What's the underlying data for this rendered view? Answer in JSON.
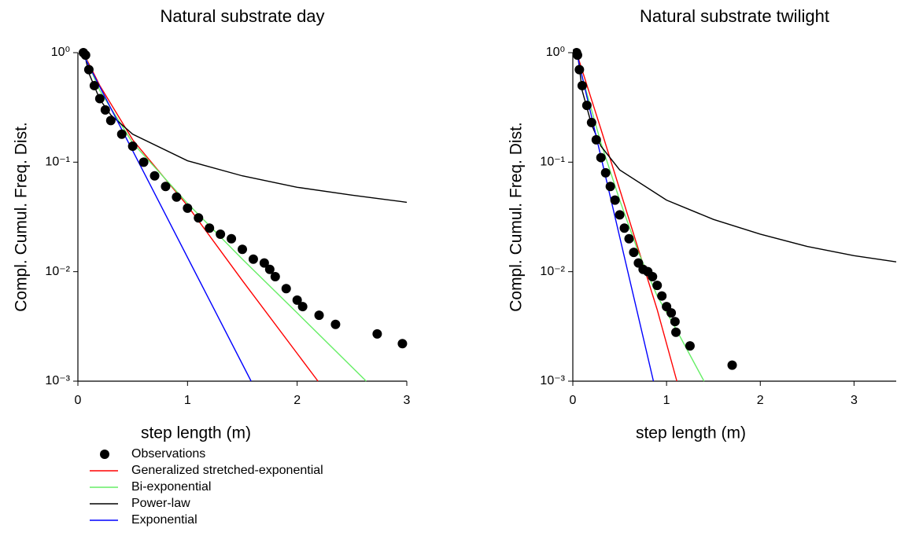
{
  "chart_data": [
    {
      "type": "line",
      "title": "Natural substrate day",
      "xlabel": "step length (m)",
      "ylabel": "Compl. Cumul. Freq. Dist.",
      "xlim": [
        0,
        3
      ],
      "xticks": [
        0,
        1,
        2,
        3
      ],
      "ylim": [
        0.001,
        1
      ],
      "ylog": true,
      "yticks": [
        {
          "value": 1,
          "label": "10⁰"
        },
        {
          "value": 0.1,
          "label": "10⁻¹"
        },
        {
          "value": 0.01,
          "label": "10⁻²"
        },
        {
          "value": 0.001,
          "label": "10⁻³"
        }
      ],
      "legend": "below",
      "series": [
        {
          "name": "Observations",
          "color": "#000000",
          "marker": "circle",
          "x": [
            0.05,
            0.07,
            0.1,
            0.15,
            0.2,
            0.25,
            0.3,
            0.4,
            0.5,
            0.6,
            0.7,
            0.8,
            0.9,
            1.0,
            1.1,
            1.2,
            1.3,
            1.4,
            1.5,
            1.6,
            1.7,
            1.75,
            1.8,
            1.9,
            2.0,
            2.05,
            2.2,
            2.35,
            2.73,
            2.96
          ],
          "values": [
            1,
            0.95,
            0.7,
            0.5,
            0.38,
            0.3,
            0.24,
            0.18,
            0.14,
            0.1,
            0.075,
            0.06,
            0.048,
            0.038,
            0.031,
            0.025,
            0.022,
            0.02,
            0.016,
            0.013,
            0.012,
            0.0105,
            0.009,
            0.007,
            0.0055,
            0.0048,
            0.004,
            0.0033,
            0.0027,
            0.0022
          ]
        },
        {
          "name": "Generalized stretched-exponential",
          "color": "#ff0000",
          "x": [
            0.05,
            0.2,
            0.5,
            1,
            1.5,
            2.19
          ],
          "values": [
            1,
            0.5,
            0.16,
            0.04,
            0.0083,
            0.001
          ]
        },
        {
          "name": "Bi-exponential",
          "color": "#66ee66",
          "x": [
            0.05,
            0.2,
            0.5,
            1,
            1.5,
            2,
            2.63
          ],
          "values": [
            1,
            0.45,
            0.15,
            0.042,
            0.013,
            0.0042,
            0.001
          ]
        },
        {
          "name": "Power-law",
          "color": "#000000",
          "x": [
            0.06,
            0.1,
            0.2,
            0.3,
            0.5,
            1,
            1.5,
            2,
            2.5,
            3
          ],
          "values": [
            0.98,
            0.65,
            0.375,
            0.27,
            0.18,
            0.103,
            0.075,
            0.059,
            0.05,
            0.043
          ]
        },
        {
          "name": "Exponential",
          "color": "#0000ff",
          "x": [
            0.04,
            1.58
          ],
          "values": [
            1,
            0.001
          ]
        }
      ]
    },
    {
      "type": "line",
      "title": "Natural substrate twilight",
      "xlabel": "step length (m)",
      "ylabel": "Compl. Cumul. Freq. Dist.",
      "xlim": [
        0,
        3.45
      ],
      "xticks": [
        0,
        1,
        2,
        3
      ],
      "ylim": [
        0.001,
        1
      ],
      "ylog": true,
      "yticks": [
        {
          "value": 1,
          "label": "10⁰"
        },
        {
          "value": 0.1,
          "label": "10⁻¹"
        },
        {
          "value": 0.01,
          "label": "10⁻²"
        },
        {
          "value": 0.001,
          "label": "10⁻³"
        }
      ],
      "series": [
        {
          "color": "#000000",
          "marker": "circle",
          "x": [
            0.04,
            0.05,
            0.07,
            0.1,
            0.15,
            0.2,
            0.25,
            0.3,
            0.35,
            0.4,
            0.45,
            0.5,
            0.55,
            0.6,
            0.65,
            0.7,
            0.75,
            0.8,
            0.85,
            0.9,
            0.95,
            1.0,
            1.05,
            1.09,
            1.1,
            1.25,
            1.7
          ],
          "values": [
            1,
            0.95,
            0.7,
            0.5,
            0.33,
            0.23,
            0.16,
            0.11,
            0.08,
            0.06,
            0.045,
            0.033,
            0.025,
            0.02,
            0.015,
            0.012,
            0.0105,
            0.01,
            0.009,
            0.0075,
            0.006,
            0.0048,
            0.0042,
            0.0035,
            0.0028,
            0.0021,
            0.0014
          ]
        },
        {
          "color": "#ff0000",
          "x": [
            0.04,
            0.3,
            0.6,
            0.9,
            1.11
          ],
          "values": [
            1,
            0.2,
            0.03,
            0.0045,
            0.001
          ]
        },
        {
          "color": "#66ee66",
          "x": [
            0.04,
            0.1,
            0.2,
            0.3,
            0.5,
            0.7,
            0.9,
            1.1,
            1.4
          ],
          "values": [
            1,
            0.6,
            0.3,
            0.15,
            0.045,
            0.015,
            0.006,
            0.003,
            0.001
          ]
        },
        {
          "color": "#000000",
          "x": [
            0.05,
            0.1,
            0.2,
            0.3,
            0.5,
            1,
            1.5,
            2,
            2.5,
            3,
            3.45
          ],
          "values": [
            1,
            0.45,
            0.22,
            0.14,
            0.085,
            0.045,
            0.03,
            0.022,
            0.017,
            0.014,
            0.0123
          ]
        },
        {
          "color": "#0000ff",
          "x": [
            0.04,
            0.86
          ],
          "values": [
            1,
            0.001
          ]
        }
      ]
    }
  ]
}
